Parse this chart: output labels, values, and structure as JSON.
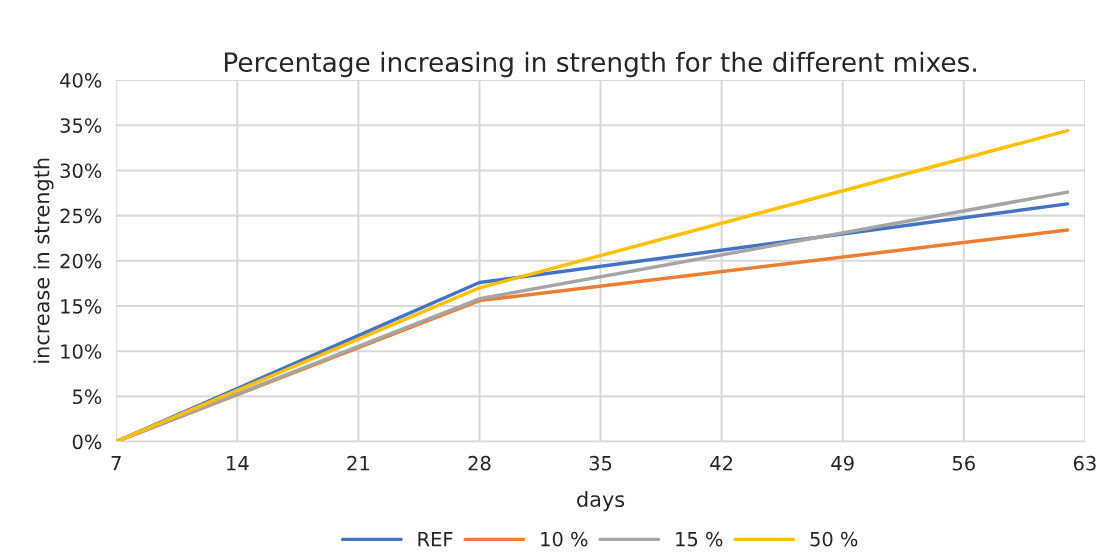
{
  "chart_data": {
    "type": "line",
    "title": "Percentage increasing in strength for the different mixes.",
    "xlabel": "days",
    "ylabel": "increase in strength",
    "x": [
      7,
      28,
      62
    ],
    "series": [
      {
        "name": "REF",
        "color": "#4472c4",
        "values": [
          0,
          17.6,
          26.3
        ]
      },
      {
        "name": "10 %",
        "color": "#ed7d31",
        "values": [
          0,
          15.6,
          23.4
        ]
      },
      {
        "name": "15 %",
        "color": "#a5a5a5",
        "values": [
          0,
          15.8,
          27.6
        ]
      },
      {
        "name": "50 %",
        "color": "#ffc000",
        "values": [
          0,
          17.0,
          34.4
        ]
      }
    ],
    "xlim": [
      7,
      63
    ],
    "xticks": [
      7,
      14,
      21,
      28,
      35,
      42,
      49,
      56,
      63
    ],
    "ylim": [
      0,
      40
    ],
    "yticks": [
      {
        "value": 0,
        "label": "0%"
      },
      {
        "value": 5,
        "label": "5%"
      },
      {
        "value": 10,
        "label": "10%"
      },
      {
        "value": 15,
        "label": "15%"
      },
      {
        "value": 20,
        "label": "20%"
      },
      {
        "value": 25,
        "label": "25%"
      },
      {
        "value": 30,
        "label": "30%"
      },
      {
        "value": 35,
        "label": "35%"
      },
      {
        "value": 40,
        "label": "40%"
      }
    ],
    "grid": true,
    "legend": "bottom",
    "marker": "none",
    "line_style": "solid"
  }
}
